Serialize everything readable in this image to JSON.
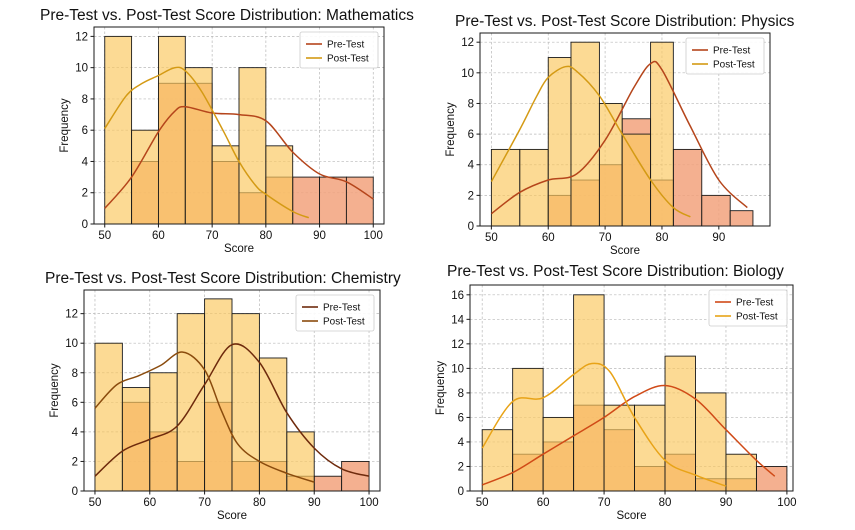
{
  "chart_data": [
    {
      "type": "histogram",
      "title": "Pre-Test vs. Post-Test Score Distribution: Mathematics",
      "xlabel": "Score",
      "ylabel": "Frequency",
      "xlim": [
        48,
        102
      ],
      "ylim": [
        0,
        12.6
      ],
      "xticks": [
        50,
        60,
        70,
        80,
        90,
        100
      ],
      "yticks": [
        0,
        2,
        4,
        6,
        8,
        10,
        12
      ],
      "grid": true,
      "legend_position": "upper-right",
      "series": [
        {
          "name": "Pre-Test",
          "color": "#b5451b",
          "fill": "#f2a27c",
          "bins": [
            [
              50,
              55,
              0
            ],
            [
              55,
              60,
              4
            ],
            [
              60,
              65,
              9
            ],
            [
              65,
              70,
              9
            ],
            [
              70,
              75,
              4
            ],
            [
              75,
              80,
              2
            ],
            [
              80,
              85,
              3
            ],
            [
              85,
              90,
              3
            ],
            [
              90,
              95,
              3
            ],
            [
              95,
              100,
              3
            ]
          ],
          "kde": [
            [
              50,
              1
            ],
            [
              55,
              3
            ],
            [
              60,
              5.9
            ],
            [
              63,
              7.2
            ],
            [
              65,
              7.5
            ],
            [
              70,
              7.1
            ],
            [
              75,
              7
            ],
            [
              80,
              6.6
            ],
            [
              85,
              4.6
            ],
            [
              90,
              3.2
            ],
            [
              95,
              2.7
            ],
            [
              100,
              1.6
            ]
          ]
        },
        {
          "name": "Post-Test",
          "color": "#d49a14",
          "fill": "#fac861",
          "bins": [
            [
              50,
              55,
              12
            ],
            [
              55,
              60,
              6
            ],
            [
              60,
              65,
              12
            ],
            [
              65,
              70,
              10
            ],
            [
              70,
              75,
              5
            ],
            [
              75,
              80,
              10
            ],
            [
              80,
              85,
              5
            ],
            [
              85,
              90,
              0
            ],
            [
              90,
              95,
              0
            ],
            [
              95,
              100,
              0
            ]
          ],
          "kde": [
            [
              50,
              6.1
            ],
            [
              54,
              8.2
            ],
            [
              57,
              9
            ],
            [
              60,
              9.5
            ],
            [
              63,
              10
            ],
            [
              65,
              9.8
            ],
            [
              68,
              8.5
            ],
            [
              72,
              6
            ],
            [
              75,
              4
            ],
            [
              78,
              2.5
            ],
            [
              80,
              1.9
            ],
            [
              85,
              0.8
            ],
            [
              88,
              0.4
            ]
          ]
        }
      ]
    },
    {
      "type": "histogram",
      "title": "Pre-Test vs. Post-Test Score Distribution: Physics",
      "xlabel": "Score",
      "ylabel": "Frequency",
      "xlim": [
        48,
        99
      ],
      "ylim": [
        0,
        12.6
      ],
      "xticks": [
        50,
        60,
        70,
        80,
        90
      ],
      "yticks": [
        0,
        2,
        4,
        6,
        8,
        10,
        12
      ],
      "grid": true,
      "legend_position": "upper-right",
      "series": [
        {
          "name": "Pre-Test",
          "color": "#b5451b",
          "fill": "#f2a27c",
          "bins": [
            [
              50,
              55,
              0
            ],
            [
              55,
              60,
              0
            ],
            [
              60,
              64,
              2
            ],
            [
              64,
              69,
              3
            ],
            [
              69,
              73,
              4
            ],
            [
              73,
              78,
              7
            ],
            [
              78,
              82,
              3
            ],
            [
              82,
              87,
              5
            ],
            [
              87,
              92,
              2
            ],
            [
              92,
              96,
              1
            ]
          ],
          "kde": [
            [
              50,
              0.8
            ],
            [
              55,
              2.2
            ],
            [
              60,
              3
            ],
            [
              65,
              3.4
            ],
            [
              70,
              5.6
            ],
            [
              75,
              9
            ],
            [
              78,
              10.6
            ],
            [
              80,
              10.2
            ],
            [
              85,
              6.5
            ],
            [
              90,
              3
            ],
            [
              95,
              1.2
            ]
          ]
        },
        {
          "name": "Post-Test",
          "color": "#d49a14",
          "fill": "#fac861",
          "bins": [
            [
              50,
              55,
              5
            ],
            [
              55,
              60,
              5
            ],
            [
              60,
              64,
              11
            ],
            [
              64,
              69,
              12
            ],
            [
              69,
              73,
              8
            ],
            [
              73,
              78,
              6
            ],
            [
              78,
              82,
              12
            ],
            [
              82,
              87,
              0
            ],
            [
              87,
              92,
              0
            ],
            [
              92,
              96,
              0
            ]
          ],
          "kde": [
            [
              50,
              2.9
            ],
            [
              55,
              6.3
            ],
            [
              58,
              8.5
            ],
            [
              60,
              9.7
            ],
            [
              63,
              10.4
            ],
            [
              65,
              10.1
            ],
            [
              69,
              8.5
            ],
            [
              73,
              6
            ],
            [
              78,
              3
            ],
            [
              82,
              1.2
            ],
            [
              85,
              0.6
            ]
          ]
        }
      ]
    },
    {
      "type": "histogram",
      "title": "Pre-Test vs. Post-Test Score Distribution: Chemistry",
      "xlabel": "Score",
      "ylabel": "Frequency",
      "xlim": [
        48,
        102
      ],
      "ylim": [
        0,
        13.6
      ],
      "xticks": [
        50,
        60,
        70,
        80,
        90,
        100
      ],
      "yticks": [
        0,
        2,
        4,
        6,
        8,
        10,
        12
      ],
      "grid": true,
      "legend_position": "upper-right",
      "series": [
        {
          "name": "Pre-Test",
          "color": "#6e2a0c",
          "fill": "#f2a27c",
          "bins": [
            [
              50,
              55,
              0
            ],
            [
              55,
              60,
              6
            ],
            [
              60,
              65,
              4
            ],
            [
              65,
              70,
              2
            ],
            [
              70,
              75,
              6
            ],
            [
              75,
              80,
              2
            ],
            [
              80,
              85,
              2
            ],
            [
              85,
              90,
              1
            ],
            [
              90,
              95,
              1
            ],
            [
              95,
              100,
              2
            ]
          ],
          "kde": [
            [
              50,
              1
            ],
            [
              55,
              2.7
            ],
            [
              60,
              3.5
            ],
            [
              65,
              4.4
            ],
            [
              70,
              7.2
            ],
            [
              75,
              9.9
            ],
            [
              80,
              8.7
            ],
            [
              85,
              5.3
            ],
            [
              90,
              2.9
            ],
            [
              95,
              1.5
            ],
            [
              100,
              1
            ]
          ]
        },
        {
          "name": "Post-Test",
          "color": "#8a4b0d",
          "fill": "#fac861",
          "bins": [
            [
              50,
              55,
              10
            ],
            [
              55,
              60,
              7
            ],
            [
              60,
              65,
              8
            ],
            [
              65,
              70,
              12
            ],
            [
              70,
              75,
              13
            ],
            [
              75,
              80,
              12
            ],
            [
              80,
              85,
              9
            ],
            [
              85,
              90,
              4
            ],
            [
              90,
              95,
              0
            ],
            [
              95,
              100,
              0
            ]
          ],
          "kde": [
            [
              50,
              5.6
            ],
            [
              54,
              7.2
            ],
            [
              58,
              7.8
            ],
            [
              62,
              8.5
            ],
            [
              66,
              9.4
            ],
            [
              70,
              8.2
            ],
            [
              73,
              5.5
            ],
            [
              76,
              3.2
            ],
            [
              80,
              2
            ],
            [
              85,
              1.2
            ],
            [
              90,
              0.6
            ]
          ]
        }
      ]
    },
    {
      "type": "histogram",
      "title": "Pre-Test vs. Post-Test Score Distribution: Biology",
      "xlabel": "Score",
      "ylabel": "Frequency",
      "xlim": [
        48,
        101
      ],
      "ylim": [
        0,
        16.8
      ],
      "xticks": [
        50,
        60,
        70,
        80,
        90,
        100
      ],
      "yticks": [
        0,
        2,
        4,
        6,
        8,
        10,
        12,
        14,
        16
      ],
      "grid": true,
      "legend_position": "upper-right",
      "series": [
        {
          "name": "Pre-Test",
          "color": "#d04a17",
          "fill": "#f2a27c",
          "bins": [
            [
              50,
              55,
              0
            ],
            [
              55,
              60,
              3
            ],
            [
              60,
              65,
              4
            ],
            [
              65,
              70,
              7
            ],
            [
              70,
              75,
              5
            ],
            [
              75,
              80,
              2
            ],
            [
              80,
              85,
              3
            ],
            [
              85,
              90,
              1
            ],
            [
              90,
              95,
              1
            ],
            [
              95,
              100,
              2
            ]
          ],
          "kde": [
            [
              50,
              0.5
            ],
            [
              55,
              1.5
            ],
            [
              60,
              3
            ],
            [
              65,
              4.5
            ],
            [
              70,
              6
            ],
            [
              75,
              7.7
            ],
            [
              80,
              8.6
            ],
            [
              85,
              7.5
            ],
            [
              90,
              5
            ],
            [
              95,
              2.5
            ],
            [
              98,
              1.2
            ]
          ]
        },
        {
          "name": "Post-Test",
          "color": "#e8a317",
          "fill": "#fac861",
          "bins": [
            [
              50,
              55,
              5
            ],
            [
              55,
              60,
              10
            ],
            [
              60,
              65,
              6
            ],
            [
              65,
              70,
              16
            ],
            [
              70,
              75,
              7
            ],
            [
              75,
              80,
              7
            ],
            [
              80,
              85,
              11
            ],
            [
              85,
              90,
              8
            ],
            [
              90,
              95,
              3
            ],
            [
              95,
              100,
              0
            ]
          ],
          "kde": [
            [
              50,
              3.5
            ],
            [
              55,
              7.3
            ],
            [
              60,
              7.6
            ],
            [
              65,
              9.5
            ],
            [
              68,
              10.4
            ],
            [
              71,
              9.7
            ],
            [
              75,
              6
            ],
            [
              80,
              2.5
            ],
            [
              85,
              1.3
            ],
            [
              90,
              0.4
            ]
          ]
        }
      ]
    }
  ]
}
